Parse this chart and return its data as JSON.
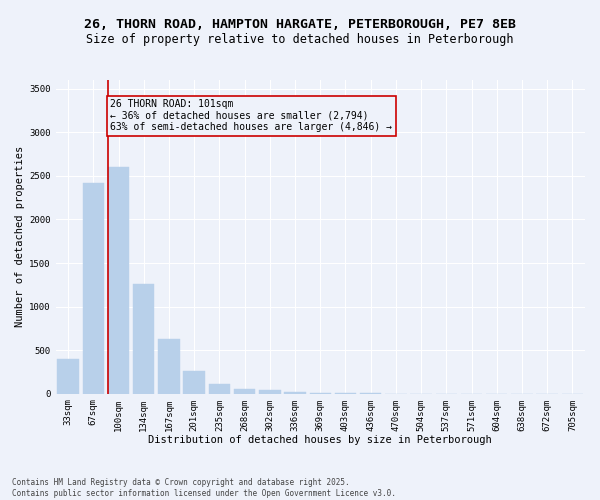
{
  "title1": "26, THORN ROAD, HAMPTON HARGATE, PETERBOROUGH, PE7 8EB",
  "title2": "Size of property relative to detached houses in Peterborough",
  "xlabel": "Distribution of detached houses by size in Peterborough",
  "ylabel": "Number of detached properties",
  "categories": [
    "33sqm",
    "67sqm",
    "100sqm",
    "134sqm",
    "167sqm",
    "201sqm",
    "235sqm",
    "268sqm",
    "302sqm",
    "336sqm",
    "369sqm",
    "403sqm",
    "436sqm",
    "470sqm",
    "504sqm",
    "537sqm",
    "571sqm",
    "604sqm",
    "638sqm",
    "672sqm",
    "705sqm"
  ],
  "values": [
    400,
    2420,
    2600,
    1260,
    630,
    260,
    110,
    55,
    45,
    25,
    10,
    5,
    3,
    2,
    1,
    1,
    0,
    0,
    0,
    0,
    0
  ],
  "bar_color": "#b8d0ea",
  "bar_edge_color": "#b8d0ea",
  "vline_color": "#cc0000",
  "annotation_text": "26 THORN ROAD: 101sqm\n← 36% of detached houses are smaller (2,794)\n63% of semi-detached houses are larger (4,846) →",
  "annotation_box_color": "#cc0000",
  "ylim": [
    0,
    3600
  ],
  "yticks": [
    0,
    500,
    1000,
    1500,
    2000,
    2500,
    3000,
    3500
  ],
  "footer1": "Contains HM Land Registry data © Crown copyright and database right 2025.",
  "footer2": "Contains public sector information licensed under the Open Government Licence v3.0.",
  "bg_color": "#eef2fa",
  "grid_color": "#ffffff",
  "title_fontsize": 9.5,
  "subtitle_fontsize": 8.5,
  "tick_fontsize": 6.5,
  "ylabel_fontsize": 7.5,
  "xlabel_fontsize": 7.5,
  "footer_fontsize": 5.5,
  "annotation_fontsize": 7.0
}
